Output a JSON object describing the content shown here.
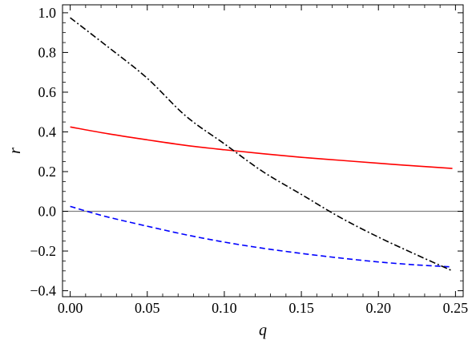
{
  "chart_data": {
    "type": "line",
    "title": "",
    "xlabel": "q",
    "ylabel": "r",
    "xlim": [
      -0.005,
      0.255
    ],
    "ylim": [
      -0.43,
      1.04
    ],
    "xticks": [
      0.0,
      0.05,
      0.1,
      0.15,
      0.2,
      0.25
    ],
    "xtick_labels": [
      "0.00",
      "0.05",
      "0.10",
      "0.15",
      "0.20",
      "0.25"
    ],
    "yticks": [
      -0.4,
      -0.2,
      0.0,
      0.2,
      0.4,
      0.6,
      0.8,
      1.0
    ],
    "ytick_labels": [
      "−0.4",
      "−0.2",
      "0.0",
      "0.2",
      "0.4",
      "0.6",
      "0.8",
      "1.0"
    ],
    "grid": false,
    "legend": "none",
    "reference_line": {
      "y": 0.0,
      "color": "#808080"
    },
    "series": [
      {
        "style": "solid",
        "color": "#ff0000",
        "x": [
          0.0,
          0.025,
          0.05,
          0.075,
          0.1,
          0.125,
          0.15,
          0.175,
          0.2,
          0.225,
          0.248
        ],
        "y": [
          0.425,
          0.39,
          0.36,
          0.332,
          0.31,
          0.29,
          0.272,
          0.257,
          0.242,
          0.228,
          0.216
        ]
      },
      {
        "style": "dashed",
        "color": "#0000ff",
        "x": [
          0.0,
          0.01,
          0.025,
          0.05,
          0.075,
          0.1,
          0.125,
          0.15,
          0.175,
          0.2,
          0.225,
          0.248
        ],
        "y": [
          0.025,
          0.002,
          -0.03,
          -0.075,
          -0.118,
          -0.155,
          -0.186,
          -0.212,
          -0.235,
          -0.255,
          -0.27,
          -0.28
        ]
      },
      {
        "style": "dash-dot",
        "color": "#000000",
        "x": [
          0.0,
          0.025,
          0.05,
          0.075,
          0.1,
          0.125,
          0.15,
          0.175,
          0.2,
          0.225,
          0.248
        ],
        "y": [
          0.975,
          0.825,
          0.67,
          0.48,
          0.34,
          0.2,
          0.085,
          -0.03,
          -0.13,
          -0.22,
          -0.3
        ]
      }
    ]
  }
}
